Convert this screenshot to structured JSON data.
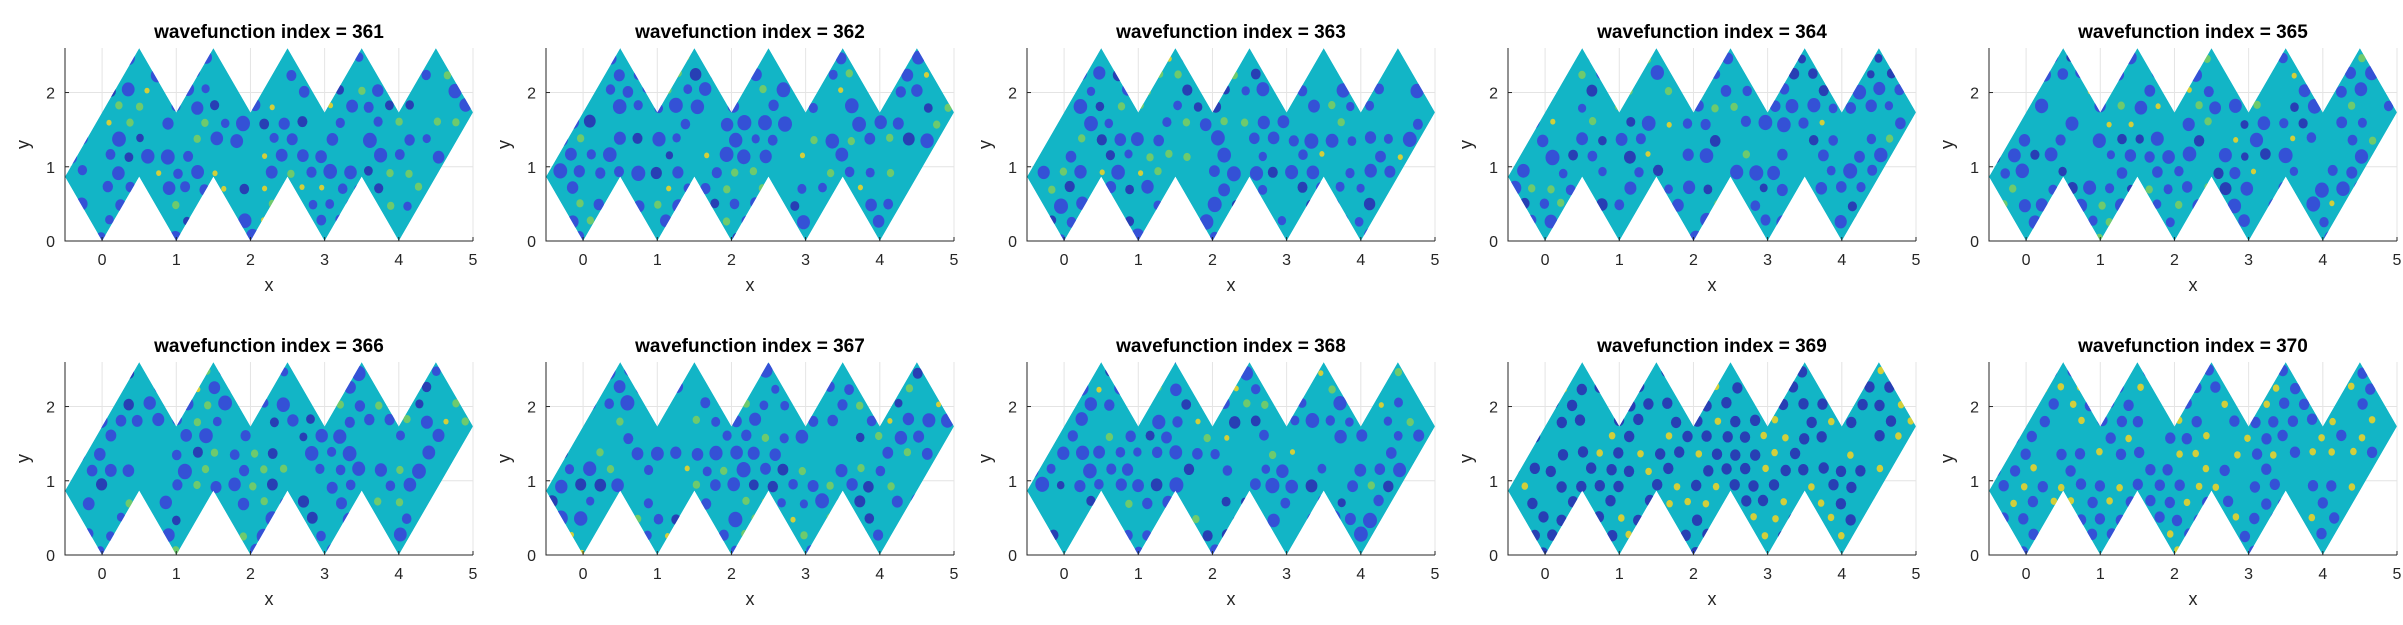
{
  "chart_data": [
    {
      "type": "heatmap",
      "title": "wavefunction index = 361",
      "xlabel": "x",
      "ylabel": "y",
      "xlim": [
        -0.5,
        5
      ],
      "ylim": [
        0,
        2.6
      ],
      "xticks": [
        "0",
        "1",
        "2",
        "3",
        "4",
        "5"
      ],
      "yticks": [
        "0",
        "1",
        "2"
      ],
      "grid": true,
      "colormap": "parula"
    },
    {
      "type": "heatmap",
      "title": "wavefunction index = 362",
      "xlabel": "x",
      "ylabel": "y",
      "xlim": [
        -0.5,
        5
      ],
      "ylim": [
        0,
        2.6
      ],
      "xticks": [
        "0",
        "1",
        "2",
        "3",
        "4",
        "5"
      ],
      "yticks": [
        "0",
        "1",
        "2"
      ],
      "grid": true,
      "colormap": "parula"
    },
    {
      "type": "heatmap",
      "title": "wavefunction index = 363",
      "xlabel": "x",
      "ylabel": "y",
      "xlim": [
        -0.5,
        5
      ],
      "ylim": [
        0,
        2.6
      ],
      "xticks": [
        "0",
        "1",
        "2",
        "3",
        "4",
        "5"
      ],
      "yticks": [
        "0",
        "1",
        "2"
      ],
      "grid": true,
      "colormap": "parula"
    },
    {
      "type": "heatmap",
      "title": "wavefunction index = 364",
      "xlabel": "x",
      "ylabel": "y",
      "xlim": [
        -0.5,
        5
      ],
      "ylim": [
        0,
        2.6
      ],
      "xticks": [
        "0",
        "1",
        "2",
        "3",
        "4",
        "5"
      ],
      "yticks": [
        "0",
        "1",
        "2"
      ],
      "grid": true,
      "colormap": "parula"
    },
    {
      "type": "heatmap",
      "title": "wavefunction index = 365",
      "xlabel": "x",
      "ylabel": "y",
      "xlim": [
        -0.5,
        5
      ],
      "ylim": [
        0,
        2.6
      ],
      "xticks": [
        "0",
        "1",
        "2",
        "3",
        "4",
        "5"
      ],
      "yticks": [
        "0",
        "1",
        "2"
      ],
      "grid": true,
      "colormap": "parula"
    },
    {
      "type": "heatmap",
      "title": "wavefunction index = 366",
      "xlabel": "x",
      "ylabel": "y",
      "xlim": [
        -0.5,
        5
      ],
      "ylim": [
        0,
        2.6
      ],
      "xticks": [
        "0",
        "1",
        "2",
        "3",
        "4",
        "5"
      ],
      "yticks": [
        "0",
        "1",
        "2"
      ],
      "grid": true,
      "colormap": "parula"
    },
    {
      "type": "heatmap",
      "title": "wavefunction index = 367",
      "xlabel": "x",
      "ylabel": "y",
      "xlim": [
        -0.5,
        5
      ],
      "ylim": [
        0,
        2.6
      ],
      "xticks": [
        "0",
        "1",
        "2",
        "3",
        "4",
        "5"
      ],
      "yticks": [
        "0",
        "1",
        "2"
      ],
      "grid": true,
      "colormap": "parula"
    },
    {
      "type": "heatmap",
      "title": "wavefunction index = 368",
      "xlabel": "x",
      "ylabel": "y",
      "xlim": [
        -0.5,
        5
      ],
      "ylim": [
        0,
        2.6
      ],
      "xticks": [
        "0",
        "1",
        "2",
        "3",
        "4",
        "5"
      ],
      "yticks": [
        "0",
        "1",
        "2"
      ],
      "grid": true,
      "colormap": "parula"
    },
    {
      "type": "heatmap",
      "title": "wavefunction index = 369",
      "xlabel": "x",
      "ylabel": "y",
      "xlim": [
        -0.5,
        5
      ],
      "ylim": [
        0,
        2.6
      ],
      "xticks": [
        "0",
        "1",
        "2",
        "3",
        "4",
        "5"
      ],
      "yticks": [
        "0",
        "1",
        "2"
      ],
      "grid": true,
      "colormap": "parula"
    },
    {
      "type": "heatmap",
      "title": "wavefunction index = 370",
      "xlabel": "x",
      "ylabel": "y",
      "xlim": [
        -0.5,
        5
      ],
      "ylim": [
        0,
        2.6
      ],
      "xticks": [
        "0",
        "1",
        "2",
        "3",
        "4",
        "5"
      ],
      "yticks": [
        "0",
        "1",
        "2"
      ],
      "grid": true,
      "colormap": "parula"
    }
  ],
  "colors": {
    "field_base": "#12b5c6",
    "field_blue": "#3b3fd8",
    "field_deep": "#2c2ab0",
    "field_yellow": "#f5d321",
    "field_green": "#7fce5d"
  }
}
